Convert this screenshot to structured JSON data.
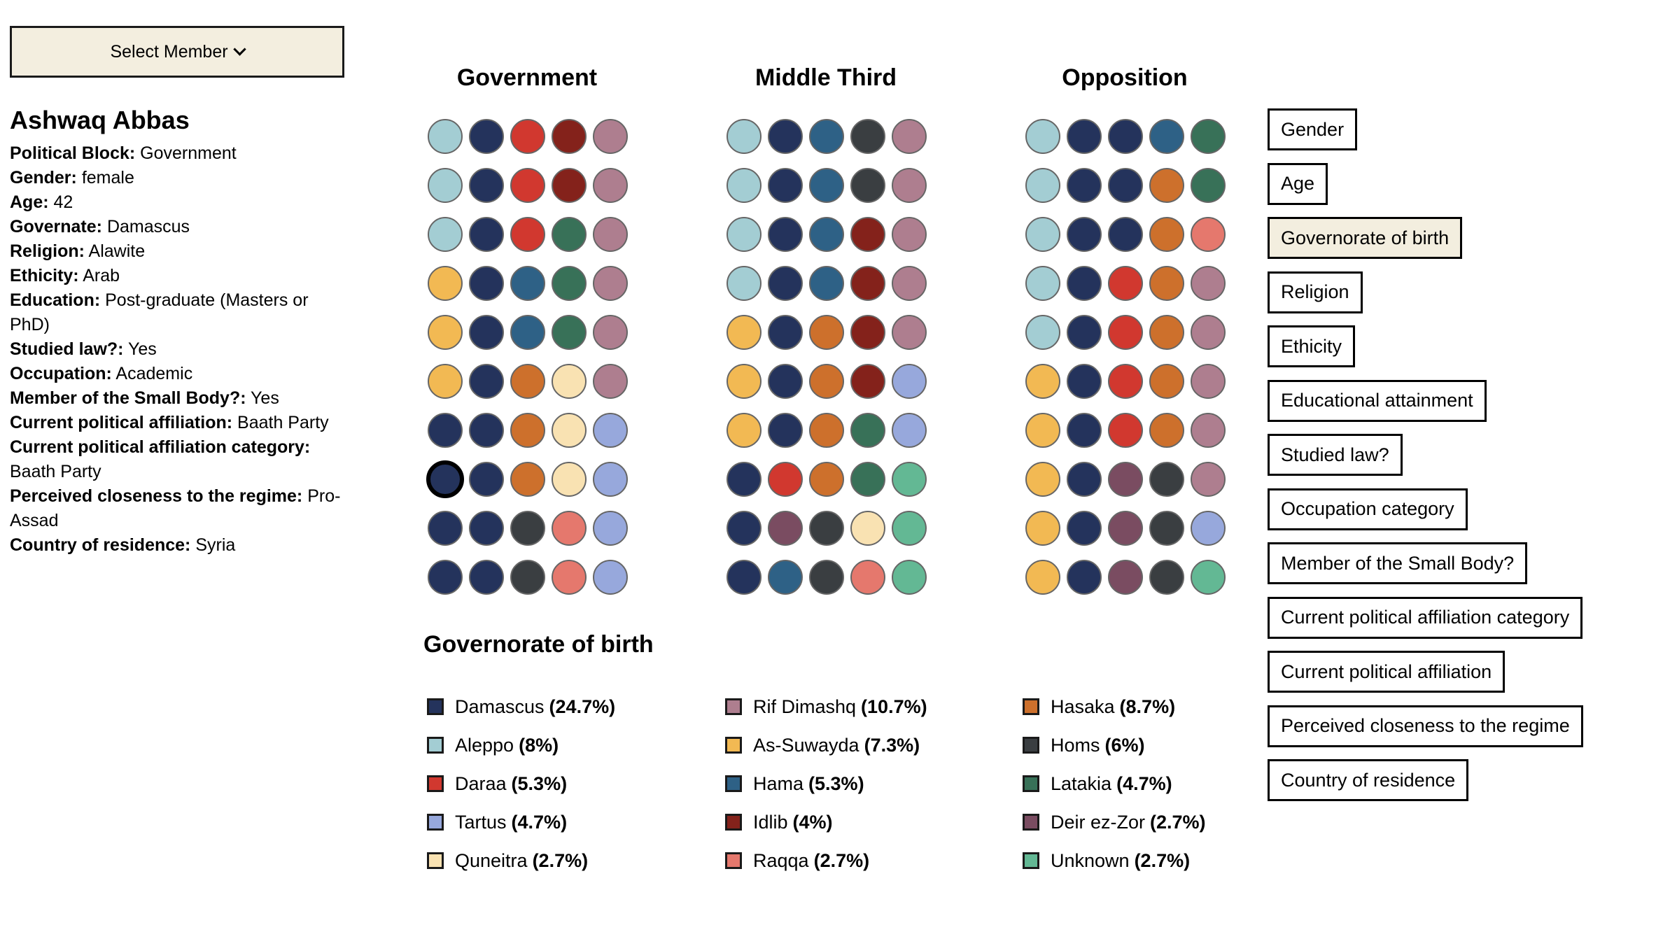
{
  "select_member": {
    "label": "Select Member",
    "icon": "chevron-down-icon"
  },
  "member": {
    "name": "Ashwaq Abbas",
    "attributes": [
      {
        "key": "Political Block:",
        "value": "Government"
      },
      {
        "key": "Gender:",
        "value": "female"
      },
      {
        "key": "Age:",
        "value": "42"
      },
      {
        "key": "Governate:",
        "value": "Damascus"
      },
      {
        "key": "Religion:",
        "value": "Alawite"
      },
      {
        "key": "Ethicity:",
        "value": "Arab"
      },
      {
        "key": "Education:",
        "value": "Post-graduate (Masters or PhD)"
      },
      {
        "key": "Studied law?:",
        "value": "Yes"
      },
      {
        "key": "Occupation:",
        "value": "Academic"
      },
      {
        "key": "Member of the Small Body?:",
        "value": "Yes"
      },
      {
        "key": "Current political affiliation:",
        "value": "Baath Party"
      },
      {
        "key": "Current political affiliation category:",
        "value": "Baath Party"
      },
      {
        "key": "Perceived closeness to the regime:",
        "value": "Pro-Assad"
      },
      {
        "key": "Country of residence:",
        "value": "Syria"
      }
    ]
  },
  "columns": [
    {
      "title": "Government",
      "rows": [
        [
          "Aleppo",
          "Damascus",
          "Daraa",
          "Idlib",
          "Rif Dimashq"
        ],
        [
          "Aleppo",
          "Damascus",
          "Daraa",
          "Idlib",
          "Rif Dimashq"
        ],
        [
          "Aleppo",
          "Damascus",
          "Daraa",
          "Latakia",
          "Rif Dimashq"
        ],
        [
          "As-Suwayda",
          "Damascus",
          "Hama",
          "Latakia",
          "Rif Dimashq"
        ],
        [
          "As-Suwayda",
          "Damascus",
          "Hama",
          "Latakia",
          "Rif Dimashq"
        ],
        [
          "As-Suwayda",
          "Damascus",
          "Hasaka",
          "Quneitra",
          "Rif Dimashq"
        ],
        [
          "Damascus",
          "Damascus",
          "Hasaka",
          "Quneitra",
          "Tartus"
        ],
        [
          "Damascus",
          "Damascus",
          "Hasaka",
          "Quneitra",
          "Tartus"
        ],
        [
          "Damascus",
          "Damascus",
          "Homs",
          "Raqqa",
          "Tartus"
        ],
        [
          "Damascus",
          "Damascus",
          "Homs",
          "Raqqa",
          "Tartus"
        ]
      ]
    },
    {
      "title": "Middle Third",
      "rows": [
        [
          "Aleppo",
          "Damascus",
          "Hama",
          "Homs",
          "Rif Dimashq"
        ],
        [
          "Aleppo",
          "Damascus",
          "Hama",
          "Homs",
          "Rif Dimashq"
        ],
        [
          "Aleppo",
          "Damascus",
          "Hama",
          "Idlib",
          "Rif Dimashq"
        ],
        [
          "Aleppo",
          "Damascus",
          "Hama",
          "Idlib",
          "Rif Dimashq"
        ],
        [
          "As-Suwayda",
          "Damascus",
          "Hasaka",
          "Idlib",
          "Rif Dimashq"
        ],
        [
          "As-Suwayda",
          "Damascus",
          "Hasaka",
          "Idlib",
          "Tartus"
        ],
        [
          "As-Suwayda",
          "Damascus",
          "Hasaka",
          "Latakia",
          "Tartus"
        ],
        [
          "Damascus",
          "Daraa",
          "Hasaka",
          "Latakia",
          "Unknown"
        ],
        [
          "Damascus",
          "Deir ez-Zor",
          "Homs",
          "Quneitra",
          "Unknown"
        ],
        [
          "Damascus",
          "Hama",
          "Homs",
          "Raqqa",
          "Unknown"
        ]
      ]
    },
    {
      "title": "Opposition",
      "rows": [
        [
          "Aleppo",
          "Damascus",
          "Damascus",
          "Hama",
          "Latakia"
        ],
        [
          "Aleppo",
          "Damascus",
          "Damascus",
          "Hasaka",
          "Latakia"
        ],
        [
          "Aleppo",
          "Damascus",
          "Damascus",
          "Hasaka",
          "Raqqa"
        ],
        [
          "Aleppo",
          "Damascus",
          "Daraa",
          "Hasaka",
          "Rif Dimashq"
        ],
        [
          "Aleppo",
          "Damascus",
          "Daraa",
          "Hasaka",
          "Rif Dimashq"
        ],
        [
          "As-Suwayda",
          "Damascus",
          "Daraa",
          "Hasaka",
          "Rif Dimashq"
        ],
        [
          "As-Suwayda",
          "Damascus",
          "Daraa",
          "Hasaka",
          "Rif Dimashq"
        ],
        [
          "As-Suwayda",
          "Damascus",
          "Deir ez-Zor",
          "Homs",
          "Rif Dimashq"
        ],
        [
          "As-Suwayda",
          "Damascus",
          "Deir ez-Zor",
          "Homs",
          "Tartus"
        ],
        [
          "As-Suwayda",
          "Damascus",
          "Deir ez-Zor",
          "Homs",
          "Unknown"
        ]
      ]
    }
  ],
  "selected_dot": {
    "column": 0,
    "row": 7,
    "col": 0
  },
  "legend": {
    "title": "Governorate of birth",
    "items": [
      {
        "name": "Damascus",
        "pct": "(24.7%)",
        "color": "#24335c"
      },
      {
        "name": "Aleppo",
        "pct": "(8%)",
        "color": "#a3cdd3"
      },
      {
        "name": "Daraa",
        "pct": "(5.3%)",
        "color": "#d1382f"
      },
      {
        "name": "Tartus",
        "pct": "(4.7%)",
        "color": "#97a8dc"
      },
      {
        "name": "Quneitra",
        "pct": "(2.7%)",
        "color": "#f9e2b2"
      },
      {
        "name": "Rif Dimashq",
        "pct": "(10.7%)",
        "color": "#ae7e8f"
      },
      {
        "name": "As-Suwayda",
        "pct": "(7.3%)",
        "color": "#f2b953"
      },
      {
        "name": "Hama",
        "pct": "(5.3%)",
        "color": "#2e6186"
      },
      {
        "name": "Idlib",
        "pct": "(4%)",
        "color": "#84221b"
      },
      {
        "name": "Raqqa",
        "pct": "(2.7%)",
        "color": "#e5786d"
      },
      {
        "name": "Hasaka",
        "pct": "(8.7%)",
        "color": "#cd702c"
      },
      {
        "name": "Homs",
        "pct": "(6%)",
        "color": "#3a3e41"
      },
      {
        "name": "Latakia",
        "pct": "(4.7%)",
        "color": "#387158"
      },
      {
        "name": "Deir ez-Zor",
        "pct": "(2.7%)",
        "color": "#7a4c61"
      },
      {
        "name": "Unknown",
        "pct": "(2.7%)",
        "color": "#63b894"
      }
    ]
  },
  "categories": {
    "active": "Governorate of birth",
    "items": [
      "Gender",
      "Age",
      "Governorate of birth",
      "Religion",
      "Ethicity",
      "Educational attainment",
      "Studied law?",
      "Occupation category",
      "Member of the Small Body?",
      "Current political affiliation category",
      "Current political affiliation",
      "Perceived closeness to the regime",
      "Country of residence"
    ]
  }
}
